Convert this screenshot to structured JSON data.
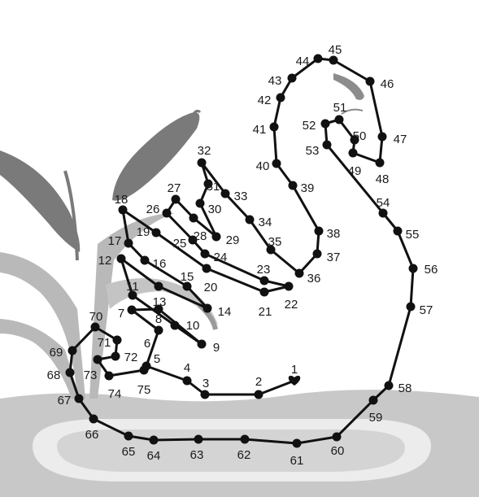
{
  "puzzle": {
    "type": "connect-the-dots",
    "subject": "swan on water with cattails",
    "colors": {
      "background": "#ffffff",
      "water_dark": "#c8c8c8",
      "water_light": "#e6e6e6",
      "reed_dark": "#7a7a7a",
      "reed_light": "#b9b9b9",
      "line": "#111111",
      "dot": "#111111"
    },
    "start_marker": "heart-icon",
    "dot_labels": [
      "1",
      "2",
      "3",
      "4",
      "5",
      "6",
      "7",
      "8",
      "9",
      "10",
      "11",
      "12",
      "13",
      "14",
      "15",
      "16",
      "17",
      "18",
      "19",
      "20",
      "21",
      "22",
      "23",
      "24",
      "25",
      "26",
      "27",
      "28",
      "29",
      "30",
      "31",
      "32",
      "33",
      "34",
      "35",
      "36",
      "37",
      "38",
      "39",
      "40",
      "41",
      "42",
      "43",
      "44",
      "45",
      "46",
      "47",
      "48",
      "49",
      "50",
      "51",
      "52",
      "53",
      "54",
      "55",
      "56",
      "57",
      "58",
      "59",
      "60",
      "61",
      "62",
      "63",
      "64",
      "65",
      "66",
      "67",
      "68",
      "69",
      "70",
      "71",
      "72",
      "73",
      "74",
      "75"
    ]
  }
}
